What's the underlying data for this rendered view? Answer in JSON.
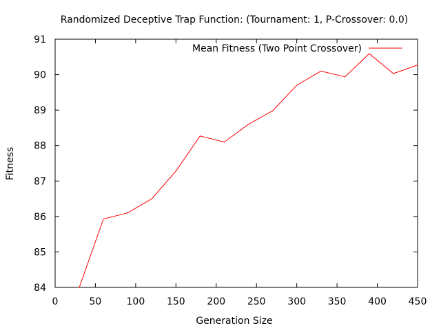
{
  "chart_data": {
    "type": "line",
    "title": "Randomized Deceptive Trap Function:  (Tournament: 1, P-Crossover: 0.0)",
    "xlabel": "Generation Size",
    "ylabel": "Fitness",
    "xlim": [
      0,
      450
    ],
    "ylim": [
      84,
      91
    ],
    "x_ticks": [
      0,
      50,
      100,
      150,
      200,
      250,
      300,
      350,
      400,
      450
    ],
    "y_ticks": [
      84,
      85,
      86,
      87,
      88,
      89,
      90,
      91
    ],
    "grid": false,
    "legend_position": "top-right",
    "series": [
      {
        "name": "Mean Fitness (Two Point Crossover)",
        "color": "#ff0000",
        "x": [
          30,
          60,
          90,
          120,
          150,
          180,
          210,
          240,
          270,
          300,
          330,
          360,
          390,
          420,
          450
        ],
        "values": [
          84.0,
          85.93,
          86.1,
          86.5,
          87.28,
          88.27,
          88.1,
          88.6,
          88.98,
          89.7,
          90.1,
          89.94,
          90.59,
          90.03,
          90.27
        ]
      }
    ]
  }
}
